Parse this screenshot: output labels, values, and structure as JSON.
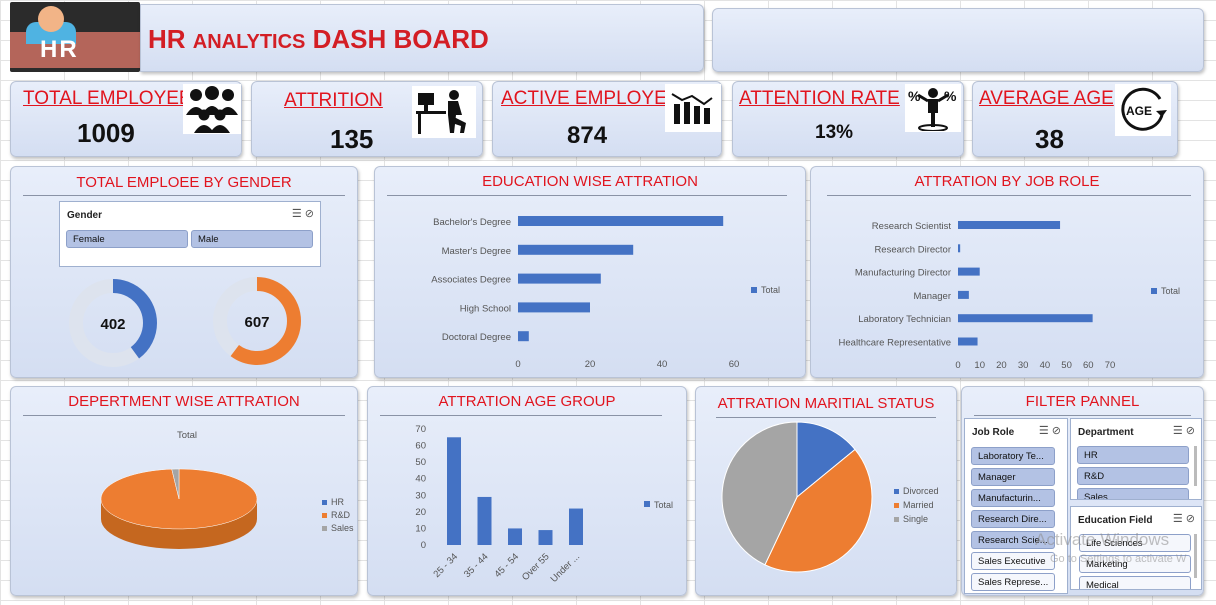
{
  "header": {
    "logo_text": "HR",
    "title_part1": "HR ",
    "title_part2": "ANALYTICS",
    "title_part3": " DASH BOARD"
  },
  "kpis": [
    {
      "label": "TOTAL EMPLOYEES",
      "value": "1009",
      "icon": "people-group-icon"
    },
    {
      "label": "ATTRITION",
      "value": "135",
      "icon": "person-leaving-desk-icon"
    },
    {
      "label": "ACTIVE EMPLOYEES",
      "value": "874",
      "icon": "team-chart-icon"
    },
    {
      "label": "ATTENTION RATE",
      "value": "13%",
      "icon": "person-percent-icon"
    },
    {
      "label": "AVERAGE AGE",
      "value": "38",
      "icon": "age-cycle-icon"
    }
  ],
  "gender_panel": {
    "title": "TOTAL EMPLOEE BY GENDER",
    "slicer_title": "Gender",
    "options": [
      "Female",
      "Male"
    ],
    "female_value": "402",
    "male_value": "607",
    "colors": {
      "female": "#4472c4",
      "male": "#ed7d31",
      "track": "#dde3ee"
    }
  },
  "edu_panel": {
    "title": "EDUCATION WISE ATTRATION"
  },
  "job_panel": {
    "title": "ATTRATION BY JOB ROLE"
  },
  "dept_panel": {
    "title": "DEPERTMENT WISE ATTRATION"
  },
  "age_panel": {
    "title": "ATTRATION AGE GROUP"
  },
  "marital_panel": {
    "title": "ATTRATION MARITIAL STATUS"
  },
  "filter_panel": {
    "title": "FILTER PANNEL",
    "job_role": {
      "title": "Job Role",
      "options": [
        "Laboratory Te...",
        "Manager",
        "Manufacturin...",
        "Research Dire...",
        "Research Scie...",
        "Sales Executive",
        "Sales Represe..."
      ]
    },
    "department": {
      "title": "Department",
      "options": [
        "HR",
        "R&D",
        "Sales"
      ]
    },
    "education_field": {
      "title": "Education Field",
      "options": [
        "Life Sciences",
        "Marketing",
        "Medical"
      ]
    }
  },
  "watermark": {
    "line1": "Activate Windows",
    "line2": "Go to Settings to activate W"
  },
  "chart_data": [
    {
      "type": "bar",
      "orientation": "horizontal",
      "categories": [
        "Bachelor's Degree",
        "Master's Degree",
        "Associates Degree",
        "High School",
        "Doctoral Degree"
      ],
      "series": [
        {
          "name": "Total",
          "values": [
            57,
            32,
            23,
            20,
            3
          ]
        }
      ],
      "xlim": [
        0,
        60
      ],
      "xticks": [
        "0",
        "20",
        "40",
        "60"
      ],
      "legend": "right",
      "color": "#4472c4"
    },
    {
      "type": "bar",
      "orientation": "horizontal",
      "categories": [
        "Research Scientist",
        "Research Director",
        "Manufacturing Director",
        "Manager",
        "Laboratory Technician",
        "Healthcare Representative"
      ],
      "series": [
        {
          "name": "Total",
          "values": [
            47,
            1,
            10,
            5,
            62,
            9
          ]
        }
      ],
      "xlim": [
        0,
        70
      ],
      "xticks": [
        "0",
        "10",
        "20",
        "30",
        "40",
        "50",
        "60",
        "70"
      ],
      "legend": "right",
      "color": "#4472c4"
    },
    {
      "type": "pie",
      "title": "Total",
      "categories": [
        "HR",
        "R&D",
        "Sales"
      ],
      "values": [
        0,
        133,
        2
      ],
      "colors": [
        "#4472c4",
        "#ed7d31",
        "#a5a5a5"
      ],
      "legend": "right"
    },
    {
      "type": "bar",
      "categories": [
        "25 - 34",
        "35 - 44",
        "45 - 54",
        "Over 55",
        "Under ..."
      ],
      "series": [
        {
          "name": "Total",
          "values": [
            65,
            29,
            10,
            9,
            22
          ]
        }
      ],
      "ylim": [
        0,
        70
      ],
      "yticks": [
        "0",
        "10",
        "20",
        "30",
        "40",
        "50",
        "60",
        "70"
      ],
      "legend": "right",
      "color": "#4472c4"
    },
    {
      "type": "pie",
      "categories": [
        "Divorced",
        "Married",
        "Single"
      ],
      "values": [
        19,
        58,
        58
      ],
      "colors": [
        "#4472c4",
        "#ed7d31",
        "#a5a5a5"
      ],
      "legend": "right"
    }
  ]
}
